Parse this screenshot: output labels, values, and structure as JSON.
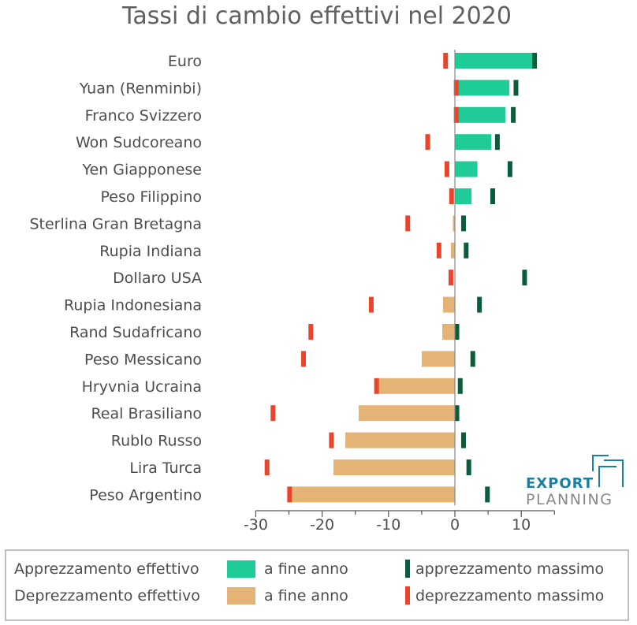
{
  "chart_data": {
    "type": "bar",
    "orientation": "horizontal",
    "title": "Tassi di cambio effettivi nel 2020",
    "categories": [
      "Euro",
      "Yuan (Renminbi)",
      "Franco Svizzero",
      "Won Sudcoreano",
      "Yen Giapponese",
      "Peso Filippino",
      "Sterlina Gran Bretagna",
      "Rupia Indiana",
      "Dollaro USA",
      "Rupia Indonesiana",
      "Rand Sudafricano",
      "Peso Messicano",
      "Hryvnia Ucraina",
      "Real Brasiliano",
      "Rublo Russo",
      "Lira Turca",
      "Peso Argentino"
    ],
    "series": [
      {
        "name": "a fine anno",
        "values": [
          11.7,
          8.2,
          7.6,
          5.5,
          3.4,
          2.5,
          -0.3,
          -0.6,
          0.0,
          -1.8,
          -1.9,
          -5.0,
          -11.6,
          -14.5,
          -16.5,
          -18.3,
          -24.8
        ]
      },
      {
        "name": "apprezzamento massimo",
        "values": [
          12.0,
          9.2,
          8.8,
          6.4,
          8.3,
          5.7,
          1.3,
          1.7,
          10.5,
          3.7,
          0.3,
          2.7,
          0.8,
          0.3,
          1.3,
          2.1,
          4.9
        ]
      },
      {
        "name": "deprezzamento massimo",
        "values": [
          -1.4,
          0.2,
          0.2,
          -4.1,
          -1.2,
          -0.5,
          -7.1,
          -2.4,
          -0.6,
          -12.6,
          -21.7,
          -22.8,
          -11.8,
          -27.4,
          -18.6,
          -28.3,
          -24.9
        ]
      }
    ],
    "xlim": [
      -30,
      15
    ],
    "xticks": [
      -30,
      -20,
      -10,
      0,
      10
    ],
    "xlabel": "",
    "ylabel": "",
    "grid": false,
    "colors": {
      "appreciation_bar": "#1fcb96",
      "depreciation_bar": "#e3b475",
      "max_appreciation": "#0a5c3a",
      "max_depreciation": "#e8452c",
      "axis": "#555555"
    },
    "legend": {
      "position": "bottom",
      "row1_label": "Apprezzamento effettivo",
      "row2_label": "Deprezzamento effettivo",
      "end_of_year": "a fine anno",
      "max_appreciation": "apprezzamento massimo",
      "max_depreciation": "deprezzamento massimo"
    }
  },
  "branding": {
    "line1": "EXPORT",
    "line2": "PLANNING"
  }
}
